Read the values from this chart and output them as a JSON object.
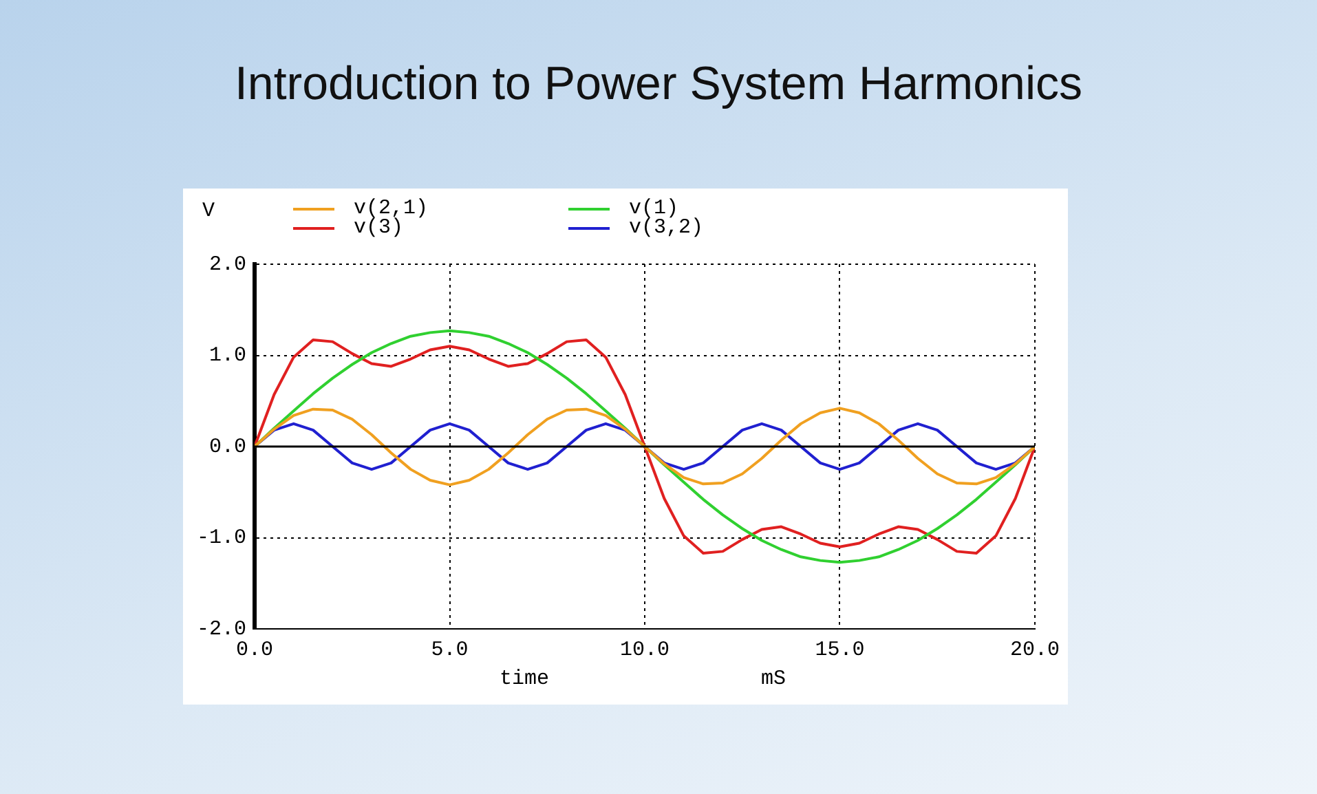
{
  "chart_data": {
    "type": "line",
    "title": "Introduction to Power System Harmonics",
    "xlabel": "time",
    "ylabel": "V",
    "annotations": [
      "mS"
    ],
    "x": [
      0,
      0.5,
      1,
      1.5,
      2,
      2.5,
      3,
      3.5,
      4,
      4.5,
      5,
      5.5,
      6,
      6.5,
      7,
      7.5,
      8,
      8.5,
      9,
      9.5,
      10,
      10.5,
      11,
      11.5,
      12,
      12.5,
      13,
      13.5,
      14,
      14.5,
      15,
      15.5,
      16,
      16.5,
      17,
      17.5,
      18,
      18.5,
      19,
      19.5,
      20
    ],
    "series": [
      {
        "name": "v(2,1)",
        "color": "#f0a020",
        "values": [
          0,
          0.19,
          0.34,
          0.41,
          0.4,
          0.3,
          0.13,
          -0.07,
          -0.25,
          -0.37,
          -0.42,
          -0.37,
          -0.25,
          -0.07,
          0.13,
          0.3,
          0.4,
          0.41,
          0.34,
          0.19,
          0,
          -0.19,
          -0.34,
          -0.41,
          -0.4,
          -0.3,
          -0.13,
          0.07,
          0.25,
          0.37,
          0.42,
          0.37,
          0.25,
          0.07,
          -0.13,
          -0.3,
          -0.4,
          -0.41,
          -0.34,
          -0.19,
          0
        ]
      },
      {
        "name": "v(1)",
        "color": "#30d030",
        "values": [
          0,
          0.2,
          0.39,
          0.58,
          0.75,
          0.9,
          1.03,
          1.13,
          1.21,
          1.25,
          1.27,
          1.25,
          1.21,
          1.13,
          1.03,
          0.9,
          0.75,
          0.58,
          0.39,
          0.2,
          0,
          -0.2,
          -0.39,
          -0.58,
          -0.75,
          -0.9,
          -1.03,
          -1.13,
          -1.21,
          -1.25,
          -1.27,
          -1.25,
          -1.21,
          -1.13,
          -1.03,
          -0.9,
          -0.75,
          -0.58,
          -0.39,
          -0.2,
          0
        ]
      },
      {
        "name": "v(3)",
        "color": "#e02020",
        "values": [
          0,
          0.57,
          0.98,
          1.17,
          1.15,
          1.02,
          0.91,
          0.88,
          0.96,
          1.06,
          1.1,
          1.06,
          0.96,
          0.88,
          0.91,
          1.02,
          1.15,
          1.17,
          0.98,
          0.57,
          0,
          -0.57,
          -0.98,
          -1.17,
          -1.15,
          -1.02,
          -0.91,
          -0.88,
          -0.96,
          -1.06,
          -1.1,
          -1.06,
          -0.96,
          -0.88,
          -0.91,
          -1.02,
          -1.15,
          -1.17,
          -0.98,
          -0.57,
          0
        ]
      },
      {
        "name": "v(3,2)",
        "color": "#2020d0",
        "values": [
          0,
          0.18,
          0.25,
          0.18,
          0,
          -0.18,
          -0.25,
          -0.18,
          0,
          0.18,
          0.25,
          0.18,
          0,
          -0.18,
          -0.25,
          -0.18,
          0,
          0.18,
          0.25,
          0.18,
          0,
          -0.18,
          -0.25,
          -0.18,
          0,
          0.18,
          0.25,
          0.18,
          0,
          -0.18,
          -0.25,
          -0.18,
          0,
          0.18,
          0.25,
          0.18,
          0,
          -0.18,
          -0.25,
          -0.18,
          0
        ]
      }
    ],
    "xlim": [
      0,
      20
    ],
    "xticks": [
      {
        "value": 0,
        "label": "0.0"
      },
      {
        "value": 5,
        "label": "5.0"
      },
      {
        "value": 10,
        "label": "10.0"
      },
      {
        "value": 15,
        "label": "15.0"
      },
      {
        "value": 20,
        "label": "20.0"
      }
    ],
    "ylim": [
      -2,
      2
    ],
    "yticks": [
      {
        "value": -2,
        "label": "-2.0"
      },
      {
        "value": -1,
        "label": "-1.0"
      },
      {
        "value": 0,
        "label": "0.0"
      },
      {
        "value": 1,
        "label": "1.0"
      },
      {
        "value": 2,
        "label": "2.0"
      }
    ],
    "ref_lines": [
      {
        "axis": "y",
        "value": 0,
        "color": "#000000"
      }
    ],
    "grid": true,
    "legend": "top left",
    "marker": "none",
    "line_style": "solid"
  }
}
